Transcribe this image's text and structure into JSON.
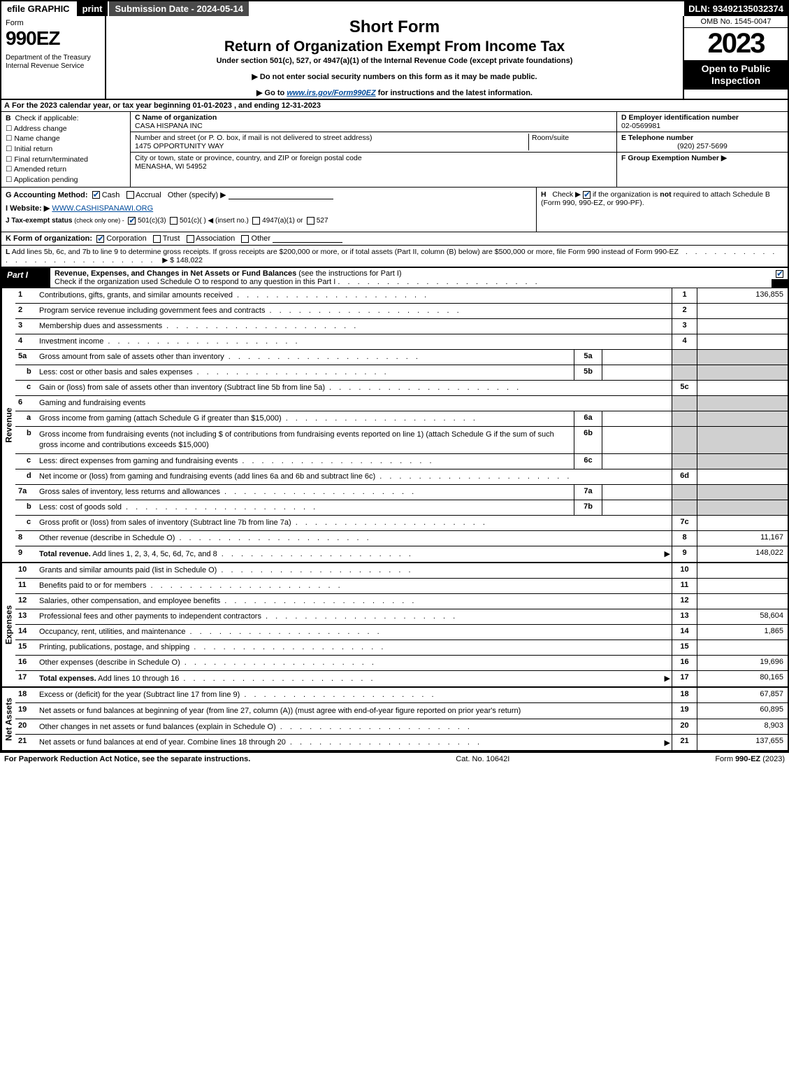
{
  "topbar": {
    "efile": "efile GRAPHIC",
    "print": "print",
    "submission": "Submission Date - 2024-05-14",
    "dln": "DLN: 93492135032374"
  },
  "header": {
    "form_label": "Form",
    "form_number": "990EZ",
    "dept": "Department of the Treasury\nInternal Revenue Service",
    "short": "Short Form",
    "title": "Return of Organization Exempt From Income Tax",
    "subtitle": "Under section 501(c), 527, or 4947(a)(1) of the Internal Revenue Code (except private foundations)",
    "note1": "▶ Do not enter social security numbers on this form as it may be made public.",
    "note2_pre": "▶ Go to ",
    "note2_link": "www.irs.gov/Form990EZ",
    "note2_post": " for instructions and the latest information.",
    "omb": "OMB No. 1545-0047",
    "year": "2023",
    "inspect": "Open to Public Inspection"
  },
  "row_a": {
    "label": "A",
    "text": "For the 2023 calendar year, or tax year beginning 01-01-2023 , and ending 12-31-2023"
  },
  "col_b": {
    "label": "B",
    "heading": "Check if applicable:",
    "items": [
      "Address change",
      "Name change",
      "Initial return",
      "Final return/terminated",
      "Amended return",
      "Application pending"
    ]
  },
  "col_c": {
    "name_label": "C Name of organization",
    "name": "CASA HISPANA INC",
    "addr_label": "Number and street (or P. O. box, if mail is not delivered to street address)",
    "addr": "1475 OPPORTUNITY WAY",
    "room_label": "Room/suite",
    "city_label": "City or town, state or province, country, and ZIP or foreign postal code",
    "city": "MENASHA, WI  54952"
  },
  "col_d": {
    "ein_label": "D Employer identification number",
    "ein": "02-0569981",
    "tel_label": "E Telephone number",
    "tel": "(920) 257-5699",
    "grp_label": "F Group Exemption Number   ▶"
  },
  "block_gi": {
    "g_label": "G Accounting Method:",
    "g_cash": "Cash",
    "g_accrual": "Accrual",
    "g_other": "Other (specify) ▶",
    "i_label": "I Website: ▶",
    "i_val": "WWW.CASHISPANAWI.ORG",
    "j_label": "J Tax-exempt status",
    "j_note": "(check only one) -",
    "j_501c3": "501(c)(3)",
    "j_501c": "501(c)(  ) ◀ (insert no.)",
    "j_4947": "4947(a)(1) or",
    "j_527": "527",
    "h_label": "H",
    "h_text1": "Check ▶",
    "h_text2": "if the organization is ",
    "h_not": "not",
    "h_text3": " required to attach Schedule B (Form 990, 990-EZ, or 990-PF)."
  },
  "row_k": {
    "label": "K Form of organization:",
    "corp": "Corporation",
    "trust": "Trust",
    "assoc": "Association",
    "other": "Other"
  },
  "row_l": {
    "label": "L",
    "text": "Add lines 5b, 6c, and 7b to line 9 to determine gross receipts. If gross receipts are $200,000 or more, or if total assets (Part II, column (B) below) are $500,000 or more, file Form 990 instead of Form 990-EZ",
    "amount": "▶ $ 148,022"
  },
  "part1": {
    "tab": "Part I",
    "title": "Revenue, Expenses, and Changes in Net Assets or Fund Balances",
    "title_note": "(see the instructions for Part I)",
    "subtext": "Check if the organization used Schedule O to respond to any question in this Part I"
  },
  "sections": {
    "revenue": "Revenue",
    "expenses": "Expenses",
    "netassets": "Net Assets"
  },
  "revenue_lines": [
    {
      "n": "1",
      "d": "Contributions, gifts, grants, and similar amounts received",
      "rn": "1",
      "rv": "136,855"
    },
    {
      "n": "2",
      "d": "Program service revenue including government fees and contracts",
      "rn": "2",
      "rv": ""
    },
    {
      "n": "3",
      "d": "Membership dues and assessments",
      "rn": "3",
      "rv": ""
    },
    {
      "n": "4",
      "d": "Investment income",
      "rn": "4",
      "rv": ""
    },
    {
      "n": "5a",
      "d": "Gross amount from sale of assets other than inventory",
      "sub": "5a",
      "shade": true
    },
    {
      "n": "b",
      "indent": true,
      "d": "Less: cost or other basis and sales expenses",
      "sub": "5b",
      "shade": true
    },
    {
      "n": "c",
      "indent": true,
      "d": "Gain or (loss) from sale of assets other than inventory (Subtract line 5b from line 5a)",
      "rn": "5c",
      "rv": ""
    },
    {
      "n": "6",
      "d": "Gaming and fundraising events",
      "plain": true,
      "shade": true
    },
    {
      "n": "a",
      "indent": true,
      "d": "Gross income from gaming (attach Schedule G if greater than $15,000)",
      "sub": "6a",
      "shade": true
    },
    {
      "n": "b",
      "indent": true,
      "d": "Gross income from fundraising events (not including $                      of contributions from fundraising events reported on line 1) (attach Schedule G if the sum of such gross income and contributions exceeds $15,000)",
      "sub": "6b",
      "tall": true,
      "shade": true
    },
    {
      "n": "c",
      "indent": true,
      "d": "Less: direct expenses from gaming and fundraising events",
      "sub": "6c",
      "shade": true
    },
    {
      "n": "d",
      "indent": true,
      "d": "Net income or (loss) from gaming and fundraising events (add lines 6a and 6b and subtract line 6c)",
      "rn": "6d",
      "rv": ""
    },
    {
      "n": "7a",
      "d": "Gross sales of inventory, less returns and allowances",
      "sub": "7a",
      "shade": true
    },
    {
      "n": "b",
      "indent": true,
      "d": "Less: cost of goods sold",
      "sub": "7b",
      "shade": true
    },
    {
      "n": "c",
      "indent": true,
      "d": "Gross profit or (loss) from sales of inventory (Subtract line 7b from line 7a)",
      "rn": "7c",
      "rv": ""
    },
    {
      "n": "8",
      "d": "Other revenue (describe in Schedule O)",
      "rn": "8",
      "rv": "11,167"
    },
    {
      "n": "9",
      "d": "Total revenue. Add lines 1, 2, 3, 4, 5c, 6d, 7c, and 8",
      "rn": "9",
      "rv": "148,022",
      "bold": true,
      "arrow": true
    }
  ],
  "expense_lines": [
    {
      "n": "10",
      "d": "Grants and similar amounts paid (list in Schedule O)",
      "rn": "10",
      "rv": ""
    },
    {
      "n": "11",
      "d": "Benefits paid to or for members",
      "rn": "11",
      "rv": ""
    },
    {
      "n": "12",
      "d": "Salaries, other compensation, and employee benefits",
      "rn": "12",
      "rv": ""
    },
    {
      "n": "13",
      "d": "Professional fees and other payments to independent contractors",
      "rn": "13",
      "rv": "58,604"
    },
    {
      "n": "14",
      "d": "Occupancy, rent, utilities, and maintenance",
      "rn": "14",
      "rv": "1,865"
    },
    {
      "n": "15",
      "d": "Printing, publications, postage, and shipping",
      "rn": "15",
      "rv": ""
    },
    {
      "n": "16",
      "d": "Other expenses (describe in Schedule O)",
      "rn": "16",
      "rv": "19,696"
    },
    {
      "n": "17",
      "d": "Total expenses. Add lines 10 through 16",
      "rn": "17",
      "rv": "80,165",
      "bold": true,
      "arrow": true
    }
  ],
  "netasset_lines": [
    {
      "n": "18",
      "d": "Excess or (deficit) for the year (Subtract line 17 from line 9)",
      "rn": "18",
      "rv": "67,857"
    },
    {
      "n": "19",
      "d": "Net assets or fund balances at beginning of year (from line 27, column (A)) (must agree with end-of-year figure reported on prior year's return)",
      "rn": "19",
      "rv": "60,895",
      "tall": true
    },
    {
      "n": "20",
      "d": "Other changes in net assets or fund balances (explain in Schedule O)",
      "rn": "20",
      "rv": "8,903"
    },
    {
      "n": "21",
      "d": "Net assets or fund balances at end of year. Combine lines 18 through 20",
      "rn": "21",
      "rv": "137,655",
      "arrow": true
    }
  ],
  "footer": {
    "left": "For Paperwork Reduction Act Notice, see the separate instructions.",
    "center": "Cat. No. 10642I",
    "right_pre": "Form ",
    "right_bold": "990-EZ",
    "right_post": " (2023)"
  },
  "colors": {
    "link": "#004b9b",
    "shade": "#d0d0d0"
  }
}
